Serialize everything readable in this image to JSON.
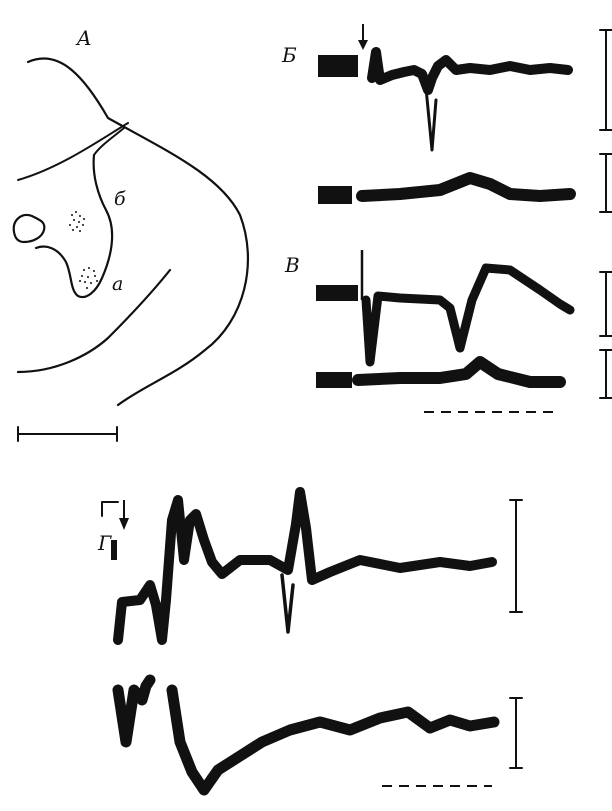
{
  "figure": {
    "panels": [
      {
        "id": "A",
        "label": "A",
        "kind": "section-sketch",
        "region_labels": [
          "б",
          "а"
        ],
        "has_scale_bar": true
      },
      {
        "id": "B",
        "label": "Б",
        "kind": "trace-pair",
        "has_stimulus_arrow": true
      },
      {
        "id": "V",
        "label": "В",
        "kind": "trace-pair",
        "has_time_bar": true
      },
      {
        "id": "G",
        "label": "Г",
        "kind": "trace-pair",
        "has_stimulus_arrow": true,
        "has_time_bar": true
      }
    ],
    "colors": {
      "ink": "#111111",
      "background": "#ffffff"
    }
  }
}
